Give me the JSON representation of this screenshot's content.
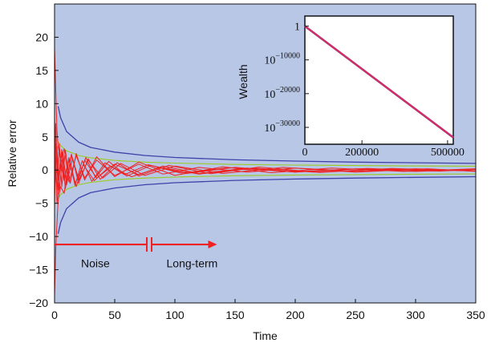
{
  "chart_data": [
    {
      "type": "line",
      "title": "",
      "xlabel": "Time",
      "ylabel": "Relative error",
      "xlim": [
        0,
        350
      ],
      "ylim": [
        -20,
        25
      ],
      "xticks": [
        "0",
        "50",
        "100",
        "150",
        "200",
        "250",
        "300",
        "350"
      ],
      "yticks": [
        "20",
        "15",
        "10",
        "5",
        "0",
        "−5",
        "−10",
        "−15",
        "−20"
      ],
      "background": "#b8c7e6",
      "colors": {
        "envelope": "#4040a8",
        "inner": "#99cc22",
        "noisy": "#ee2222",
        "arrow": "#ee2222"
      },
      "series": [
        {
          "kind": "envelope",
          "x": [
            3,
            5,
            10,
            20,
            30,
            50,
            75,
            100,
            150,
            200,
            250,
            300,
            350
          ],
          "values": [
            9.6,
            7.9,
            5.8,
            4.2,
            3.4,
            2.7,
            2.2,
            1.9,
            1.55,
            1.35,
            1.2,
            1.1,
            1.0
          ]
        },
        {
          "kind": "envelope",
          "x": [
            3,
            5,
            10,
            20,
            30,
            50,
            75,
            100,
            150,
            200,
            250,
            300,
            350
          ],
          "values": [
            -9.6,
            -7.9,
            -5.8,
            -4.2,
            -3.4,
            -2.7,
            -2.2,
            -1.9,
            -1.55,
            -1.35,
            -1.2,
            -1.1,
            -1.0
          ]
        },
        {
          "kind": "inner",
          "x": [
            2,
            5,
            10,
            20,
            30,
            50,
            75,
            100,
            150,
            200,
            250,
            300,
            350
          ],
          "values": [
            4.5,
            3.7,
            2.9,
            2.2,
            1.85,
            1.45,
            1.2,
            1.05,
            0.85,
            0.75,
            0.68,
            0.62,
            0.58
          ]
        },
        {
          "kind": "inner",
          "x": [
            2,
            5,
            10,
            20,
            30,
            50,
            75,
            100,
            150,
            200,
            250,
            300,
            350
          ],
          "values": [
            -4.5,
            -3.7,
            -2.9,
            -2.2,
            -1.85,
            -1.45,
            -1.2,
            -1.05,
            -0.85,
            -0.75,
            -0.68,
            -0.62,
            -0.58
          ]
        },
        {
          "kind": "noisy",
          "x": [
            0,
            1,
            2,
            3,
            5,
            8,
            12,
            18,
            25,
            35,
            50,
            70,
            90,
            120,
            160,
            200,
            250,
            300,
            350
          ],
          "values": [
            18.5,
            12,
            6,
            3.5,
            1.5,
            3.2,
            -1.8,
            2.2,
            -1.2,
            1.5,
            -0.8,
            0.9,
            -0.6,
            0.4,
            -0.3,
            0.3,
            -0.2,
            0.2,
            -0.1
          ]
        },
        {
          "kind": "noisy",
          "x": [
            0,
            1,
            2,
            3,
            5,
            8,
            12,
            18,
            25,
            35,
            50,
            70,
            90,
            120,
            160,
            200,
            250,
            300,
            350
          ],
          "values": [
            -19,
            -12,
            -8,
            -4.5,
            -2.5,
            -3.5,
            1.8,
            -2.5,
            1.5,
            -1.2,
            0.9,
            -0.7,
            0.6,
            -0.5,
            0.3,
            -0.3,
            0.2,
            -0.2,
            0.1
          ]
        },
        {
          "kind": "noisy",
          "x": [
            0,
            2,
            4,
            6,
            9,
            13,
            18,
            25,
            35,
            50,
            70,
            100,
            140,
            180,
            230,
            290,
            350
          ],
          "values": [
            5,
            -3,
            4,
            -2.5,
            3,
            -2,
            2.5,
            -1.5,
            2,
            -1,
            1.2,
            -0.8,
            0.5,
            -0.4,
            0.3,
            -0.2,
            0.2
          ]
        },
        {
          "kind": "noisy",
          "x": [
            0,
            2,
            4,
            7,
            10,
            15,
            20,
            28,
            40,
            55,
            75,
            100,
            140,
            190,
            250,
            310,
            350
          ],
          "values": [
            -4,
            3.5,
            -3,
            2.6,
            -2.2,
            1.8,
            -1.6,
            1.5,
            -1.2,
            1.0,
            -0.8,
            0.6,
            -0.5,
            0.4,
            -0.3,
            0.2,
            -0.2
          ]
        },
        {
          "kind": "noisy",
          "x": [
            0,
            3,
            6,
            10,
            14,
            20,
            26,
            34,
            45,
            60,
            80,
            110,
            150,
            200,
            260,
            320,
            350
          ],
          "values": [
            2,
            -1.5,
            2.8,
            -1.8,
            2.2,
            -1.3,
            1.9,
            -1.1,
            1.3,
            -0.9,
            0.7,
            -0.5,
            0.4,
            -0.3,
            0.25,
            -0.15,
            0.1
          ]
        },
        {
          "kind": "noisy",
          "x": [
            0,
            1,
            3,
            6,
            9,
            14,
            20,
            28,
            38,
            52,
            70,
            95,
            130,
            170,
            220,
            280,
            350
          ],
          "values": [
            -1,
            4,
            -1.5,
            3.1,
            -2.8,
            2.4,
            -2,
            1.7,
            -1.4,
            1.1,
            -0.9,
            0.7,
            -0.55,
            0.45,
            -0.35,
            0.25,
            -0.15
          ]
        },
        {
          "kind": "noisy",
          "x": [
            0,
            2,
            5,
            8,
            12,
            17,
            23,
            31,
            42,
            58,
            78,
            105,
            145,
            195,
            255,
            315,
            350
          ],
          "values": [
            8,
            -5,
            1.2,
            -1.6,
            1.9,
            -2.3,
            1.4,
            -1.7,
            1.1,
            -0.7,
            0.8,
            -0.45,
            0.35,
            -0.25,
            0.2,
            -0.12,
            0.1
          ]
        },
        {
          "kind": "noisy",
          "x": [
            0,
            1,
            3,
            5,
            8,
            12,
            17,
            24,
            33,
            46,
            64,
            88,
            120,
            165,
            215,
            275,
            350
          ],
          "values": [
            -6,
            7,
            -3.6,
            2.1,
            -1.1,
            1.5,
            -2.1,
            0.8,
            -1.6,
            0.6,
            -1.0,
            0.4,
            -0.6,
            0.3,
            -0.3,
            0.15,
            -0.1
          ]
        }
      ],
      "annotations": [
        {
          "text": "Noise",
          "x": 22,
          "y": -14
        },
        {
          "text": "Long-term",
          "x": 93,
          "y": -14
        }
      ],
      "arrow": {
        "y": -11.2,
        "x_start": 0,
        "x_end": 135,
        "break_at": 78
      }
    },
    {
      "type": "line",
      "title": "",
      "xlabel": "",
      "ylabel": "Wealth",
      "xlim": [
        0,
        520000
      ],
      "ylim": [
        -35000,
        3000
      ],
      "log_scale_y": true,
      "xticks": [
        "0",
        "200000",
        "500000"
      ],
      "yticks": [
        {
          "base": "1",
          "exp": ""
        },
        {
          "base": "10",
          "exp": "−10000"
        },
        {
          "base": "10",
          "exp": "−20000"
        },
        {
          "base": "10",
          "exp": "−30000"
        }
      ],
      "colors": {
        "line": "#e03050",
        "line2": "#9a2a8a"
      },
      "series": [
        {
          "x": [
            0,
            520000
          ],
          "values": [
            0,
            -33000
          ]
        }
      ]
    }
  ]
}
